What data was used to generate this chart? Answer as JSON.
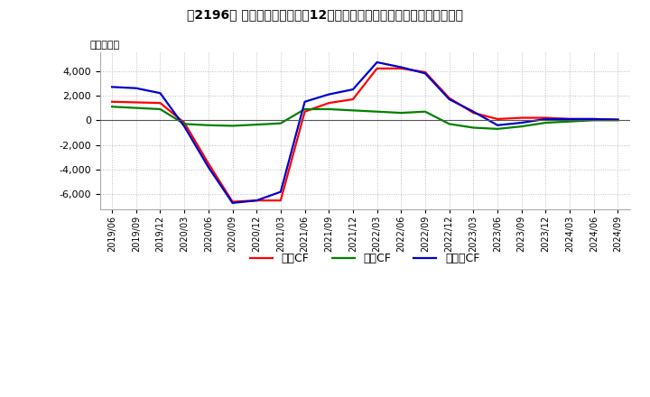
{
  "title_plain": "【2196】 キャッシュフローの12か月移動合計の対前年同期増減額の推移",
  "ylabel": "（百万円）",
  "ylim": [
    -7200,
    5500
  ],
  "yticks": [
    -6000,
    -4000,
    -2000,
    0,
    2000,
    4000
  ],
  "background_color": "#ffffff",
  "grid_color": "#bbbbbb",
  "dates": [
    "2019/06",
    "2019/09",
    "2019/12",
    "2020/03",
    "2020/06",
    "2020/09",
    "2020/12",
    "2021/03",
    "2021/06",
    "2021/09",
    "2021/12",
    "2022/03",
    "2022/06",
    "2022/09",
    "2022/12",
    "2023/03",
    "2023/06",
    "2023/09",
    "2023/12",
    "2024/03",
    "2024/06",
    "2024/09"
  ],
  "eigyo_cf": [
    1500,
    1450,
    1400,
    -200,
    -3500,
    -6600,
    -6500,
    -6500,
    700,
    1400,
    1700,
    4200,
    4200,
    3900,
    1800,
    600,
    100,
    200,
    200,
    100,
    100,
    50
  ],
  "toshi_cf": [
    1100,
    1000,
    900,
    -300,
    -400,
    -450,
    -350,
    -250,
    900,
    900,
    800,
    700,
    600,
    700,
    -300,
    -600,
    -700,
    -500,
    -200,
    -100,
    0,
    0
  ],
  "free_cf": [
    2700,
    2600,
    2200,
    -500,
    -3800,
    -6700,
    -6500,
    -5800,
    1500,
    2100,
    2500,
    4700,
    4300,
    3800,
    1700,
    700,
    -400,
    -200,
    100,
    100,
    100,
    50
  ],
  "eigyo_color": "#ff0000",
  "toshi_color": "#008000",
  "free_color": "#0000cc",
  "line_width": 1.6,
  "legend_labels": [
    "営業CF",
    "投資CF",
    "フリーCF"
  ]
}
